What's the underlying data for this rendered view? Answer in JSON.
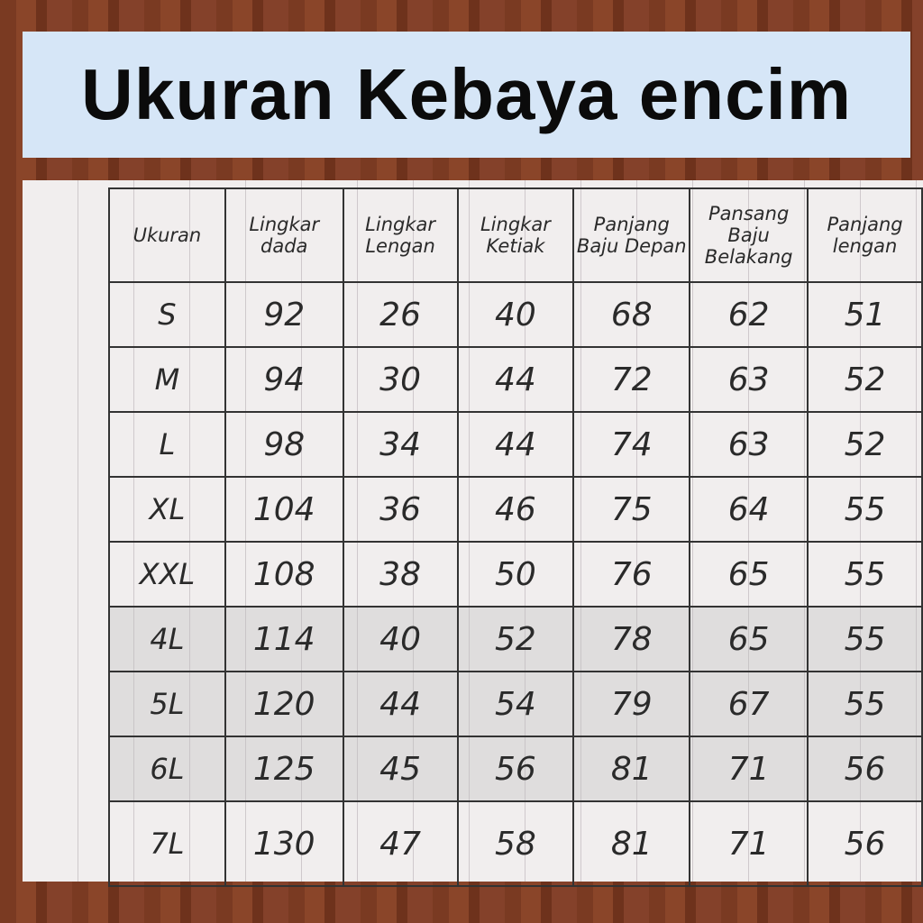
{
  "title": "Ukuran Kebaya encim",
  "table": {
    "headers": [
      "Ukuran",
      "Lingkar dada",
      "Lingkar Lengan",
      "Lingkar Ketiak",
      "Panjang Baju Depan",
      "Pansang Baju Belakang",
      "Panjang lengan"
    ],
    "rows": [
      [
        "S",
        "92",
        "26",
        "40",
        "68",
        "62",
        "51"
      ],
      [
        "M",
        "94",
        "30",
        "44",
        "72",
        "63",
        "52"
      ],
      [
        "L",
        "98",
        "34",
        "44",
        "74",
        "63",
        "52"
      ],
      [
        "XL",
        "104",
        "36",
        "46",
        "75",
        "64",
        "55"
      ],
      [
        "XXL",
        "108",
        "38",
        "50",
        "76",
        "65",
        "55"
      ],
      [
        "4L",
        "114",
        "40",
        "52",
        "78",
        "65",
        "55"
      ],
      [
        "5L",
        "120",
        "44",
        "54",
        "79",
        "67",
        "55"
      ],
      [
        "6L",
        "125",
        "45",
        "56",
        "81",
        "71",
        "56"
      ],
      [
        "7L",
        "130",
        "47",
        "58",
        "81",
        "71",
        "56"
      ]
    ]
  }
}
